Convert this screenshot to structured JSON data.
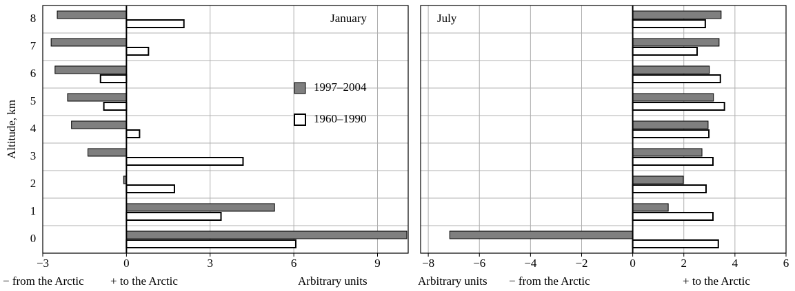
{
  "chart_data": [
    {
      "type": "hbar",
      "title": "January",
      "y_label": "Altitude, km",
      "x_labels": [
        "− from the Arctic",
        "+ to the Arctic",
        "Arbitrary units"
      ],
      "categories": [
        "0",
        "1",
        "2",
        "3",
        "4",
        "5",
        "6",
        "7",
        "8"
      ],
      "series": [
        {
          "name": "1997–2004",
          "color": "#7f7f7f",
          "values": [
            10.05,
            5.31,
            -0.1,
            -1.38,
            -1.97,
            -2.11,
            -2.56,
            -2.7,
            -2.48
          ]
        },
        {
          "name": "1960–1990",
          "color": "#ffffff",
          "values": [
            6.07,
            3.39,
            1.72,
            4.18,
            0.47,
            -0.81,
            -0.93,
            0.79,
            2.06
          ]
        }
      ],
      "xlim": [
        -3,
        10.1
      ],
      "xticks": [
        {
          "value": -3,
          "label": "−3"
        },
        0,
        3,
        6,
        9
      ],
      "grid": true,
      "legend": "center right"
    },
    {
      "type": "hbar",
      "title": "July",
      "x_labels": [
        "Arbitrary units",
        "− from the Arctic",
        "+ to the Arctic"
      ],
      "series": [
        {
          "name": "1997–2004",
          "color": "#7f7f7f",
          "values": [
            -7.16,
            1.39,
            1.98,
            2.71,
            2.95,
            3.16,
            3.0,
            3.38,
            3.46
          ]
        },
        {
          "name": "1960–1990",
          "color": "#ffffff",
          "values": [
            3.35,
            3.14,
            2.87,
            3.14,
            2.98,
            3.59,
            3.43,
            2.52,
            2.84
          ]
        }
      ],
      "xlim": [
        -8.3,
        6
      ],
      "xticks": [
        {
          "value": -8,
          "label": "−8"
        },
        {
          "value": -6,
          "label": "−6"
        },
        {
          "value": -4,
          "label": "−4"
        },
        {
          "value": -2,
          "label": "−2"
        },
        0,
        2,
        4,
        6
      ],
      "grid": true
    }
  ]
}
